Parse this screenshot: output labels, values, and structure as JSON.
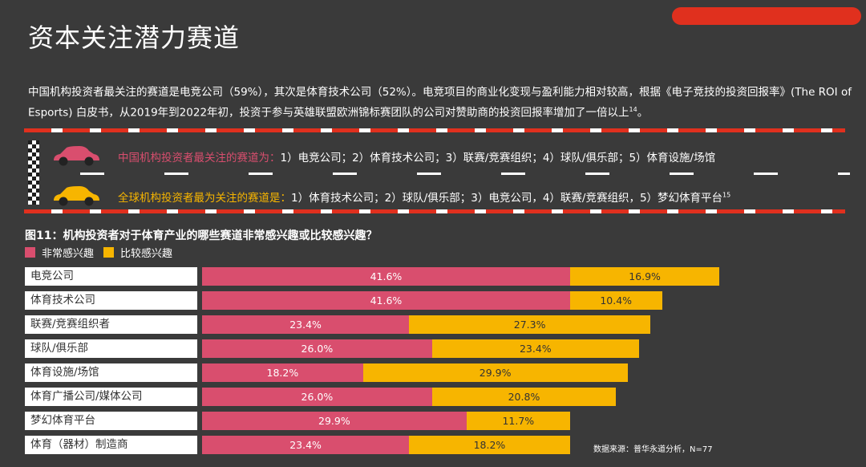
{
  "title": "资本关注潜力赛道",
  "paragraph": "中国机构投资者最关注的赛道是电竞公司（59%），其次是体育技术公司（52%）。电竞项目的商业化变现与盈利能力相对较高，根据《电子竞技的投资回报率》(The ROI of Esports) 白皮书，从2019年到2022年初，投资于参与英雄联盟欧洲锦标赛团队的公司对赞助商的投资回报率增加了一倍以上",
  "paragraph_sup": "14",
  "paragraph_end": "。",
  "lanes": [
    {
      "lead": "中国机构投资者最关注的赛道为：",
      "text": "1）电竞公司；2）体育技术公司；3）联赛/竞赛组织；4）球队/俱乐部；5）体育设施/场馆",
      "sup": ""
    },
    {
      "lead": "全球机构投资者最为关注的赛道是：",
      "text": "1）体育技术公司；2）球队/俱乐部；3）电竞公司，4）联赛/竞赛组织，5）梦幻体育平台",
      "sup": "15"
    }
  ],
  "colors": {
    "very": "#d94e6e",
    "fairly": "#f7b500",
    "accent": "#e0301e",
    "background": "#3a3a3a"
  },
  "source": "数据来源：普华永道分析，N=77",
  "chart_data": {
    "type": "bar",
    "orientation": "horizontal",
    "stacked": true,
    "title": "图11：机构投资者对于体育产业的哪些赛道非常感兴趣或比较感兴趣？",
    "categories": [
      "电竞公司",
      "体育技术公司",
      "联赛/竞赛组织者",
      "球队/俱乐部",
      "体育设施/场馆",
      "体育广播公司/媒体公司",
      "梦幻体育平台",
      "体育（器材）制造商"
    ],
    "series": [
      {
        "name": "非常感兴趣",
        "values": [
          41.6,
          41.6,
          23.4,
          26.0,
          18.2,
          26.0,
          29.9,
          23.4
        ],
        "labels": [
          "41.6%",
          "41.6%",
          "23.4%",
          "26.0%",
          "18.2%",
          "26.0%",
          "29.9%",
          "23.4%"
        ]
      },
      {
        "name": "比较感兴趣",
        "values": [
          16.9,
          10.4,
          27.3,
          23.4,
          29.9,
          20.8,
          11.7,
          18.2
        ],
        "labels": [
          "16.9%",
          "10.4%",
          "27.3%",
          "23.4%",
          "29.9%",
          "20.8%",
          "11.7%",
          "18.2%"
        ]
      }
    ],
    "unit": "%",
    "legend": "top-left"
  }
}
